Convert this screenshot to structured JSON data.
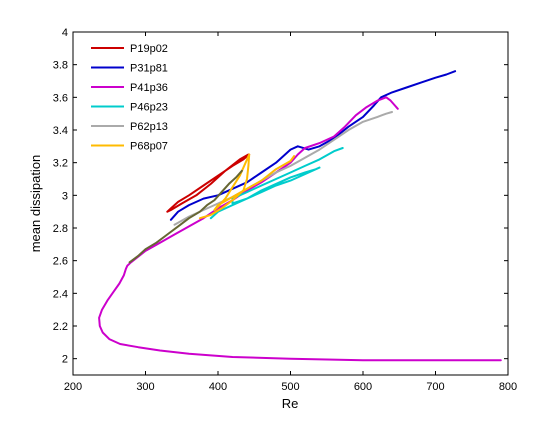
{
  "chart_data": {
    "type": "line",
    "title": "",
    "xlabel": "Re",
    "ylabel": "mean dissipation",
    "xlim": [
      200,
      800
    ],
    "ylim": [
      1.9,
      4.0
    ],
    "xticks": [
      200,
      300,
      400,
      500,
      600,
      700,
      800
    ],
    "yticks": [
      2,
      2.2,
      2.4,
      2.6,
      2.8,
      3,
      3.2,
      3.4,
      3.6,
      3.8,
      4
    ],
    "xtick_labels": [
      "200",
      "300",
      "400",
      "500",
      "600",
      "700",
      "800"
    ],
    "ytick_labels": [
      "2",
      "2.2",
      "2.4",
      "2.6",
      "2.8",
      "3",
      "3.2",
      "3.4",
      "3.6",
      "3.8",
      "4"
    ],
    "grid": false,
    "legend_position": "top-left",
    "series": [
      {
        "name": "P19p02",
        "color": "#cc0000",
        "points": [
          [
            330,
            2.9
          ],
          [
            335,
            2.92
          ],
          [
            345,
            2.96
          ],
          [
            360,
            3.0
          ],
          [
            380,
            3.06
          ],
          [
            400,
            3.12
          ],
          [
            420,
            3.18
          ],
          [
            435,
            3.22
          ],
          [
            443,
            3.25
          ],
          [
            442,
            3.25
          ],
          [
            430,
            3.22
          ],
          [
            410,
            3.15
          ],
          [
            390,
            3.07
          ],
          [
            370,
            3.0
          ],
          [
            350,
            2.95
          ],
          [
            335,
            2.91
          ],
          [
            330,
            2.9
          ]
        ]
      },
      {
        "name": "P31p81",
        "color": "#0000cc",
        "points": [
          [
            335,
            2.85
          ],
          [
            345,
            2.9
          ],
          [
            360,
            2.94
          ],
          [
            380,
            2.98
          ],
          [
            400,
            3.0
          ],
          [
            420,
            3.04
          ],
          [
            440,
            3.08
          ],
          [
            460,
            3.14
          ],
          [
            480,
            3.2
          ],
          [
            500,
            3.28
          ],
          [
            510,
            3.3
          ],
          [
            525,
            3.28
          ],
          [
            540,
            3.3
          ],
          [
            560,
            3.35
          ],
          [
            580,
            3.42
          ],
          [
            600,
            3.48
          ],
          [
            615,
            3.55
          ],
          [
            625,
            3.6
          ],
          [
            640,
            3.63
          ],
          [
            660,
            3.66
          ],
          [
            680,
            3.69
          ],
          [
            700,
            3.72
          ],
          [
            715,
            3.74
          ],
          [
            727,
            3.76
          ]
        ]
      },
      {
        "name": "P41p36",
        "color": "#cc00cc",
        "points": [
          [
            790,
            1.99
          ],
          [
            700,
            1.99
          ],
          [
            600,
            1.99
          ],
          [
            500,
            2.0
          ],
          [
            420,
            2.01
          ],
          [
            360,
            2.03
          ],
          [
            320,
            2.05
          ],
          [
            290,
            2.07
          ],
          [
            265,
            2.09
          ],
          [
            250,
            2.12
          ],
          [
            241,
            2.16
          ],
          [
            237,
            2.2
          ],
          [
            236,
            2.25
          ],
          [
            240,
            2.3
          ],
          [
            248,
            2.36
          ],
          [
            256,
            2.41
          ],
          [
            264,
            2.46
          ],
          [
            270,
            2.51
          ],
          [
            273,
            2.55
          ],
          [
            275,
            2.57
          ],
          [
            280,
            2.59
          ],
          [
            300,
            2.66
          ],
          [
            320,
            2.71
          ],
          [
            340,
            2.76
          ],
          [
            360,
            2.81
          ],
          [
            380,
            2.86
          ],
          [
            400,
            2.92
          ],
          [
            420,
            2.97
          ],
          [
            440,
            3.03
          ],
          [
            460,
            3.08
          ],
          [
            480,
            3.14
          ],
          [
            500,
            3.2
          ],
          [
            510,
            3.25
          ],
          [
            520,
            3.29
          ],
          [
            540,
            3.32
          ],
          [
            560,
            3.36
          ],
          [
            575,
            3.42
          ],
          [
            590,
            3.49
          ],
          [
            605,
            3.54
          ],
          [
            620,
            3.58
          ],
          [
            632,
            3.6
          ],
          [
            638,
            3.58
          ],
          [
            644,
            3.55
          ],
          [
            648,
            3.53
          ]
        ]
      },
      {
        "name": "P46p23",
        "color": "#00cccc",
        "points": [
          [
            390,
            2.86
          ],
          [
            400,
            2.9
          ],
          [
            420,
            2.94
          ],
          [
            440,
            2.98
          ],
          [
            460,
            3.03
          ],
          [
            480,
            3.07
          ],
          [
            500,
            3.11
          ],
          [
            520,
            3.14
          ],
          [
            535,
            3.16
          ],
          [
            540,
            3.17
          ],
          [
            520,
            3.13
          ],
          [
            500,
            3.09
          ],
          [
            480,
            3.06
          ],
          [
            460,
            3.02
          ],
          [
            440,
            2.98
          ],
          [
            420,
            2.95
          ],
          [
            420,
            2.98
          ],
          [
            440,
            3.02
          ],
          [
            460,
            3.06
          ],
          [
            480,
            3.1
          ],
          [
            500,
            3.14
          ],
          [
            520,
            3.18
          ],
          [
            540,
            3.22
          ],
          [
            560,
            3.27
          ],
          [
            572,
            3.29
          ]
        ]
      },
      {
        "name": "P62p13",
        "color": "#aaaaaa",
        "points": [
          [
            340,
            2.82
          ],
          [
            360,
            2.87
          ],
          [
            380,
            2.91
          ],
          [
            400,
            2.95
          ],
          [
            420,
            2.99
          ],
          [
            440,
            3.04
          ],
          [
            460,
            3.09
          ],
          [
            480,
            3.14
          ],
          [
            500,
            3.18
          ],
          [
            520,
            3.23
          ],
          [
            540,
            3.28
          ],
          [
            560,
            3.34
          ],
          [
            580,
            3.4
          ],
          [
            600,
            3.45
          ],
          [
            620,
            3.48
          ],
          [
            632,
            3.5
          ],
          [
            640,
            3.51
          ]
        ]
      },
      {
        "name": "P68p07",
        "color": "#ffbb00",
        "points": [
          [
            375,
            2.86
          ],
          [
            390,
            2.88
          ],
          [
            405,
            2.92
          ],
          [
            420,
            2.97
          ],
          [
            435,
            3.03
          ],
          [
            440,
            3.1
          ],
          [
            442,
            3.18
          ],
          [
            443,
            3.25
          ],
          [
            438,
            3.2
          ],
          [
            430,
            3.12
          ],
          [
            420,
            3.05
          ],
          [
            410,
            2.98
          ],
          [
            400,
            2.93
          ],
          [
            395,
            2.91
          ],
          [
            400,
            2.94
          ],
          [
            420,
            2.99
          ],
          [
            440,
            3.04
          ],
          [
            460,
            3.09
          ],
          [
            480,
            3.16
          ],
          [
            500,
            3.21
          ],
          [
            505,
            3.24
          ]
        ]
      },
      {
        "name": "",
        "color": "#666633",
        "points": [
          [
            278,
            2.59
          ],
          [
            290,
            2.63
          ],
          [
            300,
            2.67
          ],
          [
            315,
            2.71
          ],
          [
            330,
            2.76
          ],
          [
            345,
            2.81
          ],
          [
            360,
            2.86
          ],
          [
            375,
            2.9
          ],
          [
            385,
            2.94
          ],
          [
            395,
            2.97
          ],
          [
            405,
            3.02
          ],
          [
            415,
            3.07
          ],
          [
            425,
            3.11
          ],
          [
            433,
            3.15
          ]
        ]
      }
    ]
  }
}
